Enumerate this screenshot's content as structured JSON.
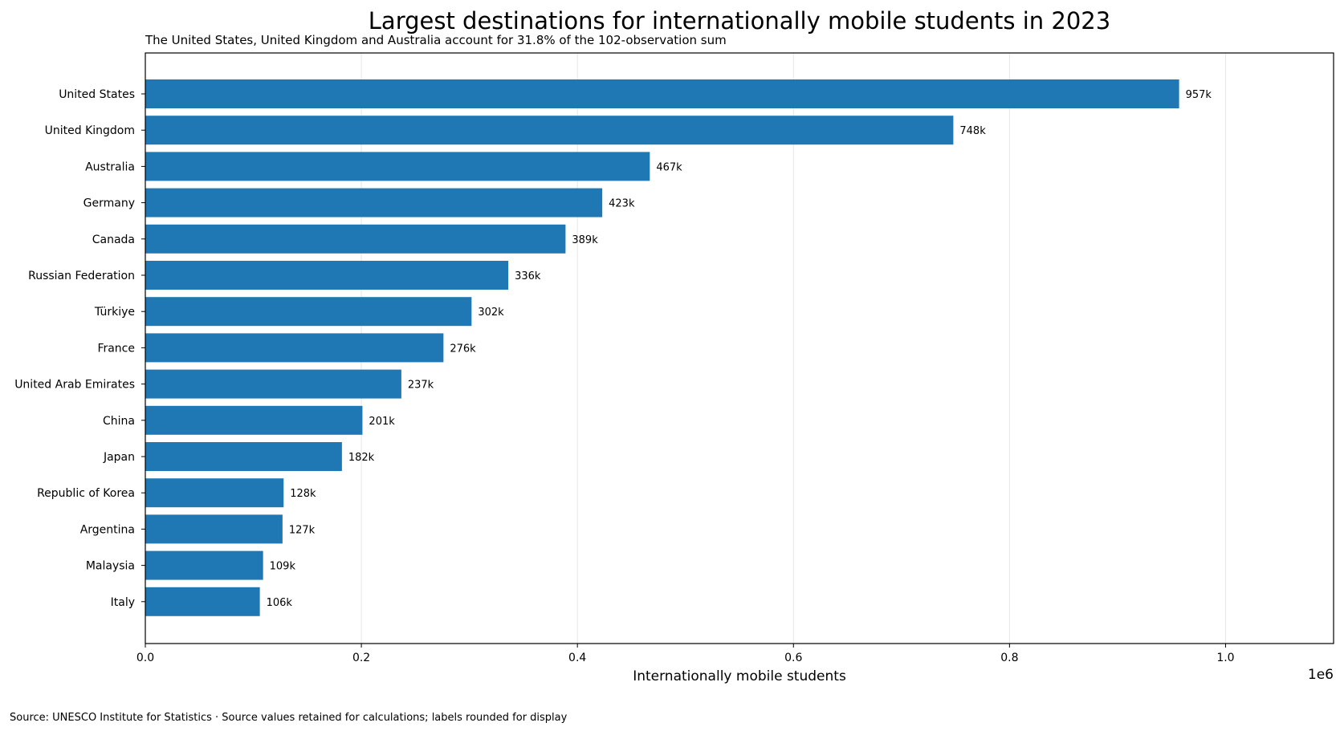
{
  "chart_data": {
    "type": "bar",
    "orientation": "horizontal",
    "title": "Largest destinations for internationally mobile students in 2023",
    "subtitle": "The United States, United Kingdom and Australia account for 31.8% of the 102-observation sum",
    "xlabel": "Internationally mobile students",
    "ylabel": "",
    "x_offset_label": "1e6",
    "xlim": [
      0,
      1100000
    ],
    "x_ticks": [
      0,
      200000,
      400000,
      600000,
      800000,
      1000000
    ],
    "x_tick_labels": [
      "0.0",
      "0.2",
      "0.4",
      "0.6",
      "0.8",
      "1.0"
    ],
    "grid": "vertical",
    "bar_color": "#1f77b4",
    "categories": [
      "United States",
      "United Kingdom",
      "Australia",
      "Germany",
      "Canada",
      "Russian Federation",
      "Türkiye",
      "France",
      "United Arab Emirates",
      "China",
      "Japan",
      "Republic of Korea",
      "Argentina",
      "Malaysia",
      "Italy"
    ],
    "values": [
      957000,
      748000,
      467000,
      423000,
      389000,
      336000,
      302000,
      276000,
      237000,
      201000,
      182000,
      128000,
      127000,
      109000,
      106000
    ],
    "data_labels": [
      "957k",
      "748k",
      "467k",
      "423k",
      "389k",
      "336k",
      "302k",
      "276k",
      "237k",
      "201k",
      "182k",
      "128k",
      "127k",
      "109k",
      "106k"
    ],
    "source": "Source: UNESCO Institute for Statistics · Source values retained for calculations; labels rounded for display"
  }
}
